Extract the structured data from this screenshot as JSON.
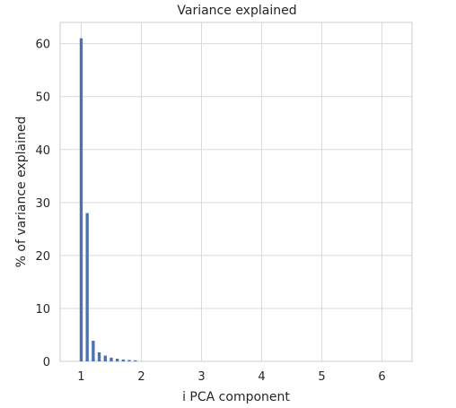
{
  "chart_data": {
    "type": "bar",
    "title": "Variance explained",
    "xlabel": "i PCA component",
    "ylabel": "% of variance explained",
    "xlim": [
      0.65,
      6.5
    ],
    "ylim": [
      0,
      64
    ],
    "xticks": [
      1,
      2,
      3,
      4,
      5,
      6
    ],
    "yticks": [
      0,
      10,
      20,
      30,
      40,
      50,
      60
    ],
    "grid": true,
    "bar_color": "#4c72b0",
    "bar_width": 0.05,
    "x": [
      1.0,
      1.1,
      1.2,
      1.3,
      1.4,
      1.5,
      1.6,
      1.7,
      1.8,
      1.9
    ],
    "values": [
      61.0,
      28.0,
      3.9,
      1.7,
      1.1,
      0.7,
      0.5,
      0.35,
      0.25,
      0.2
    ]
  }
}
